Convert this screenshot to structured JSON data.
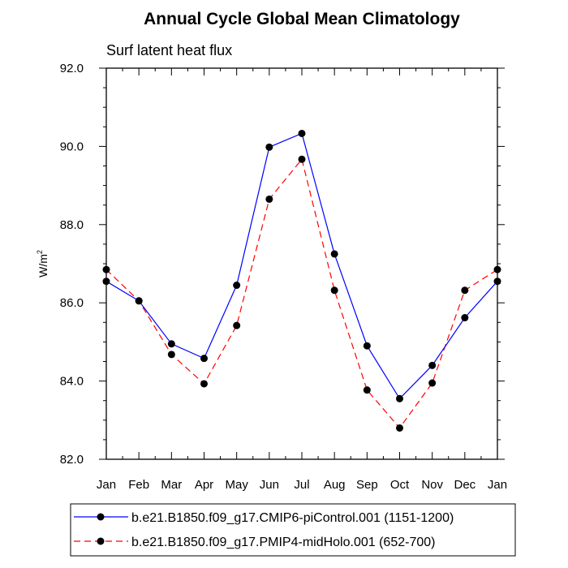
{
  "chart_data": {
    "type": "line",
    "title": "Annual Cycle Global Mean Climatology",
    "subtitle": "Surf latent heat flux",
    "ylabel_base": "W/m",
    "ylabel_exp": "2",
    "xlabel": "",
    "categories": [
      "Jan",
      "Feb",
      "Mar",
      "Apr",
      "May",
      "Jun",
      "Jul",
      "Aug",
      "Sep",
      "Oct",
      "Nov",
      "Dec",
      "Jan"
    ],
    "ylim": [
      82.0,
      92.0
    ],
    "yticks": [
      "82.0",
      "84.0",
      "86.0",
      "88.0",
      "90.0",
      "92.0"
    ],
    "yticks_values": [
      82,
      84,
      86,
      88,
      90,
      92
    ],
    "grid": false,
    "legend_position": "bottom",
    "series": [
      {
        "name": "b.e21.B1850.f09_g17.CMIP6-piControl.001 (1151-1200)",
        "color": "#0000ff",
        "dash": "solid",
        "values": [
          86.55,
          86.05,
          84.95,
          84.58,
          86.45,
          89.98,
          90.33,
          87.25,
          84.9,
          83.55,
          84.4,
          85.62,
          86.55
        ]
      },
      {
        "name": "b.e21.B1850.f09_g17.PMIP4-midHolo.001 (652-700)",
        "color": "#ff0000",
        "dash": "dashed",
        "values": [
          86.85,
          86.05,
          84.68,
          83.93,
          85.42,
          88.65,
          89.67,
          86.32,
          83.77,
          82.8,
          83.95,
          86.32,
          86.85
        ]
      }
    ]
  }
}
